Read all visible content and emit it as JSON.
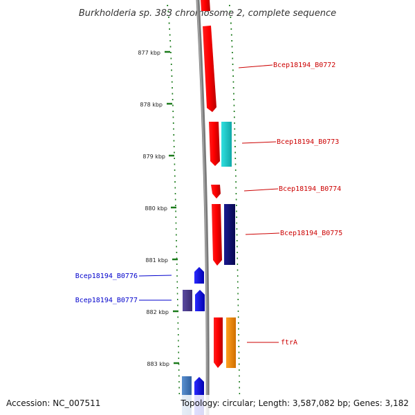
{
  "title": "Burkholderia sp. 383 chromosome 2, complete sequence",
  "accession": "Accession: NC_007511",
  "summary": "Topology: circular; Length: 3,587,082 bp; Genes: 3,182",
  "kbp_labels": [
    "877 kbp",
    "878 kbp",
    "879 kbp",
    "880 kbp",
    "881 kbp",
    "882 kbp",
    "883 kbp"
  ],
  "gene_labels": {
    "b0772": "Bcep18194_B0772",
    "b0773": "Bcep18194_B0773",
    "b0774": "Bcep18194_B0774",
    "b0775": "Bcep18194_B0775",
    "b0776": "Bcep18194_B0776",
    "b0777": "Bcep18194_B0777",
    "ftra": "ftrA"
  },
  "colors": {
    "forward_cds": "#ff0000",
    "reverse_cds": "#0000ff",
    "forward_label": "#cc0000",
    "reverse_label": "#0000cc",
    "backbone": "#888888",
    "gc_ticks": "#1a7a1a",
    "cyan_feature": "#1fd0d0",
    "navy_feature": "#10107a",
    "orange_feature": "#ff8c00",
    "purple_feature": "#4a3a8a",
    "steel_feature": "#4a78b8"
  }
}
